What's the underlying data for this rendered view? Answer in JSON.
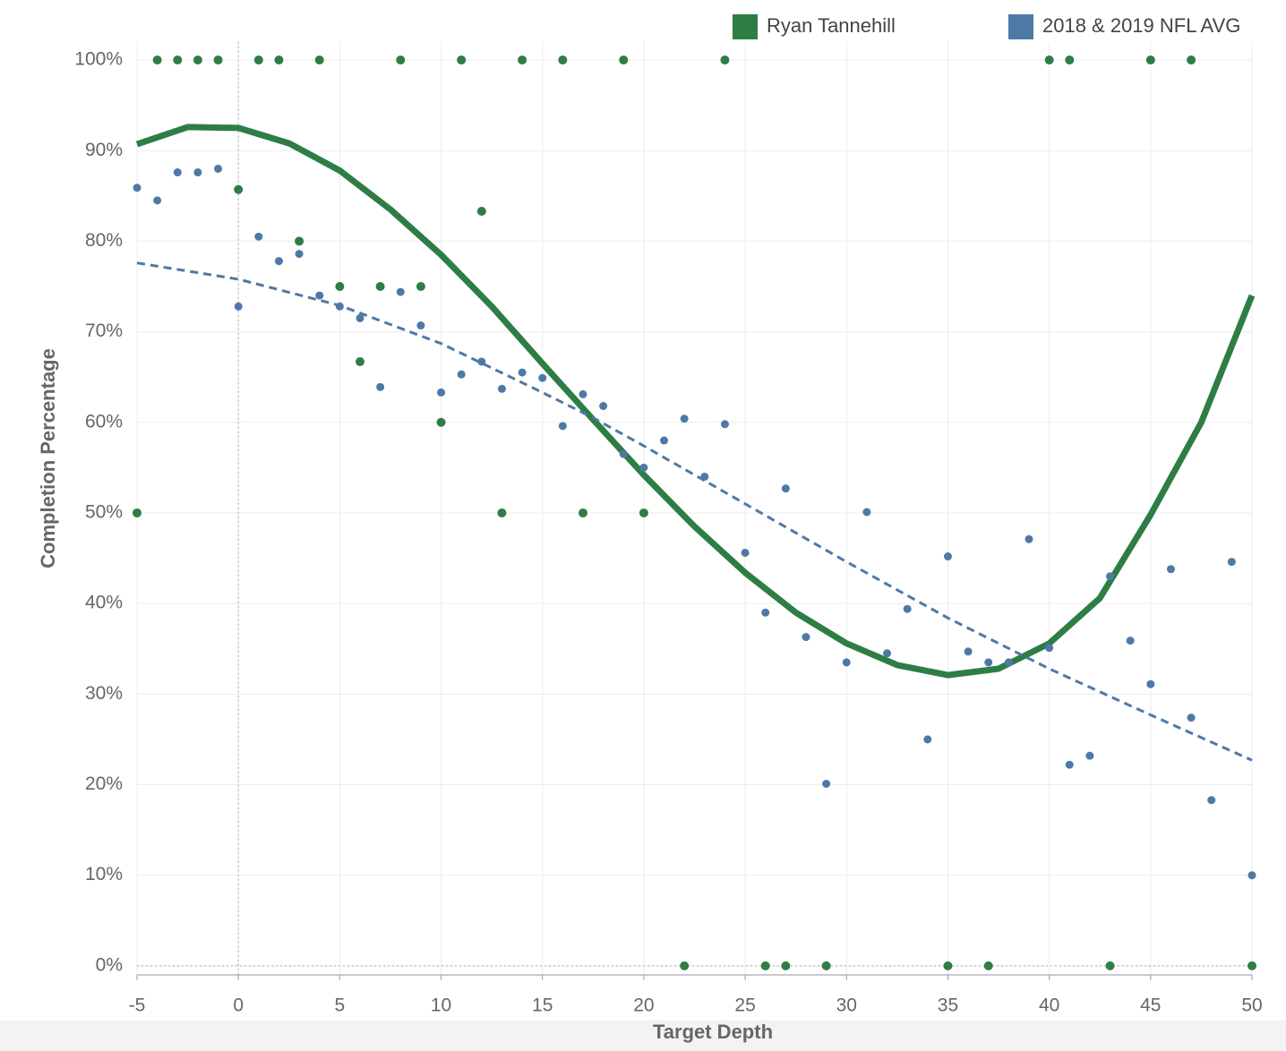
{
  "chart_data": {
    "type": "scatter",
    "xlabel": "Target Depth",
    "ylabel": "Completion Percentage",
    "xlim": [
      -5,
      50
    ],
    "ylim": [
      -1,
      102
    ],
    "xticks": [
      -5,
      0,
      5,
      10,
      15,
      20,
      25,
      30,
      35,
      40,
      45,
      50
    ],
    "yticks": [
      {
        "value": 0,
        "label": "0%"
      },
      {
        "value": 10,
        "label": "10%"
      },
      {
        "value": 20,
        "label": "20%"
      },
      {
        "value": 30,
        "label": "30%"
      },
      {
        "value": 40,
        "label": "40%"
      },
      {
        "value": 50,
        "label": "50%"
      },
      {
        "value": 60,
        "label": "60%"
      },
      {
        "value": 70,
        "label": "70%"
      },
      {
        "value": 80,
        "label": "80%"
      },
      {
        "value": 90,
        "label": "90%"
      },
      {
        "value": 100,
        "label": "100%"
      }
    ],
    "grid": true,
    "legend": "top-right",
    "series": [
      {
        "name": "Ryan Tannehill",
        "color": "#2e7d45",
        "x": [
          -4,
          -3,
          -2,
          -1,
          1,
          2,
          4,
          8,
          11,
          14,
          16,
          19,
          24,
          40,
          41,
          45,
          47,
          -5,
          0,
          3,
          5,
          7,
          9,
          6,
          10,
          12,
          13,
          17,
          20,
          22,
          26,
          27,
          29,
          35,
          37,
          43,
          50
        ],
        "values": [
          100,
          100,
          100,
          100,
          100,
          100,
          100,
          100,
          100,
          100,
          100,
          100,
          100,
          100,
          100,
          100,
          100,
          50,
          85.7,
          80,
          75,
          75,
          75,
          66.7,
          60,
          83.3,
          50,
          50,
          50,
          0,
          0,
          0,
          0,
          0,
          0,
          0,
          0
        ]
      },
      {
        "name": "2018 & 2019 NFL AVG",
        "color": "#4e79a7",
        "x": [
          -5,
          -4,
          -3,
          -2,
          -1,
          0,
          1,
          2,
          3,
          4,
          5,
          6,
          7,
          8,
          9,
          10,
          11,
          12,
          13,
          14,
          15,
          16,
          17,
          18,
          19,
          20,
          21,
          22,
          23,
          24,
          25,
          26,
          27,
          28,
          29,
          30,
          31,
          32,
          33,
          34,
          35,
          36,
          37,
          38,
          39,
          40,
          41,
          42,
          43,
          44,
          45,
          46,
          47,
          48,
          49,
          50
        ],
        "values": [
          85.9,
          84.5,
          87.6,
          87.6,
          88.0,
          72.8,
          80.5,
          77.8,
          78.6,
          74.0,
          72.8,
          71.5,
          63.9,
          74.4,
          70.7,
          63.3,
          65.3,
          66.7,
          63.7,
          65.5,
          64.9,
          59.6,
          63.1,
          61.8,
          56.5,
          55.0,
          58.0,
          60.4,
          54.0,
          59.8,
          45.6,
          39.0,
          52.7,
          36.3,
          20.1,
          33.5,
          50.1,
          34.5,
          39.4,
          25.0,
          45.2,
          34.7,
          33.5,
          33.5,
          47.1,
          35.1,
          22.2,
          23.2,
          43.0,
          35.9,
          31.1,
          43.8,
          27.4,
          18.3,
          44.6,
          10.0
        ]
      }
    ],
    "trend_lines": [
      {
        "color": "#2e7d45",
        "dashed": false,
        "x": [
          -5,
          -2.5,
          0,
          2.5,
          5,
          7.5,
          10,
          12.5,
          15,
          17.5,
          20,
          22.5,
          25,
          27.5,
          30,
          32.5,
          35,
          37.5,
          40,
          42.5,
          45,
          47.5,
          50
        ],
        "values": [
          90.7,
          92.6,
          92.5,
          90.8,
          87.8,
          83.5,
          78.5,
          72.8,
          66.5,
          60.3,
          54.2,
          48.5,
          43.4,
          39.0,
          35.6,
          33.2,
          32.1,
          32.8,
          35.6,
          40.6,
          49.8,
          60.0,
          74.0
        ]
      },
      {
        "color": "#4e79a7",
        "dashed": true,
        "x": [
          -5,
          0,
          5,
          10,
          15,
          17.5,
          20,
          25,
          30,
          35,
          40,
          45,
          50
        ],
        "values": [
          77.6,
          75.8,
          72.9,
          68.7,
          63.3,
          60.5,
          57.4,
          51.0,
          44.6,
          38.4,
          32.8,
          27.7,
          22.7
        ]
      }
    ]
  }
}
